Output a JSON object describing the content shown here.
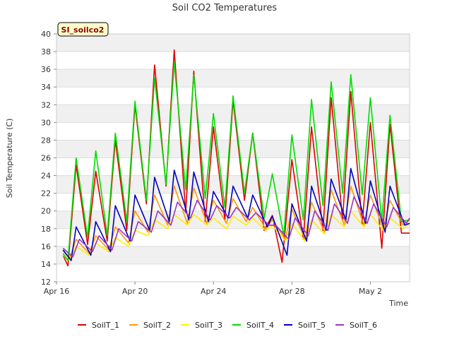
{
  "chart_data": {
    "type": "line",
    "title": "Soil CO2 Temperatures",
    "badge": "SI_soilco2",
    "xlabel": "Time",
    "ylabel": "Soil Temperature (C)",
    "ylim": [
      12,
      40
    ],
    "yticks": [
      12,
      14,
      16,
      18,
      20,
      22,
      24,
      26,
      28,
      30,
      32,
      34,
      36,
      38,
      40
    ],
    "xlim": [
      "2021-04-16",
      "2021-05-04"
    ],
    "xticks": [
      {
        "date": "2021-04-16",
        "label": "Apr 16"
      },
      {
        "date": "2021-04-20",
        "label": "Apr 20"
      },
      {
        "date": "2021-04-24",
        "label": "Apr 24"
      },
      {
        "date": "2021-04-28",
        "label": "Apr 28"
      },
      {
        "date": "2021-05-02",
        "label": "May 2"
      }
    ],
    "grid": "horizontal bands",
    "legend_position": "bottom",
    "colors": {
      "SoilT_1": "#dd0000",
      "SoilT_2": "#ff9900",
      "SoilT_3": "#ffee00",
      "SoilT_4": "#00dd00",
      "SoilT_5": "#0000bb",
      "SoilT_6": "#9933cc"
    },
    "series": [
      {
        "name": "SoilT_1",
        "x": [
          "2021-04-16T08:00",
          "2021-04-16T14:00",
          "2021-04-17T00:00",
          "2021-04-17T14:00",
          "2021-04-18T00:00",
          "2021-04-18T14:00",
          "2021-04-19T00:00",
          "2021-04-19T14:00",
          "2021-04-20T00:00",
          "2021-04-20T14:00",
          "2021-04-21T00:00",
          "2021-04-21T14:00",
          "2021-04-22T00:00",
          "2021-04-22T14:00",
          "2021-04-23T00:00",
          "2021-04-23T14:00",
          "2021-04-24T00:00",
          "2021-04-24T14:00",
          "2021-04-25T00:00",
          "2021-04-25T14:00",
          "2021-04-26T00:00",
          "2021-04-26T14:00",
          "2021-04-27T00:00",
          "2021-04-27T12:00",
          "2021-04-28T00:00",
          "2021-04-28T14:00",
          "2021-04-29T00:00",
          "2021-04-29T14:00",
          "2021-04-30T00:00",
          "2021-04-30T14:00",
          "2021-05-01T00:00",
          "2021-05-01T14:00",
          "2021-05-02T00:00",
          "2021-05-02T14:00",
          "2021-05-03T00:00",
          "2021-05-03T14:00",
          "2021-05-04T00:00"
        ],
        "values": [
          15.0,
          13.8,
          25.2,
          16.2,
          24.5,
          16.6,
          28.0,
          17.8,
          32.0,
          20.8,
          36.5,
          22.8,
          38.2,
          19.8,
          35.8,
          18.8,
          29.5,
          19.0,
          32.5,
          21.2,
          28.8,
          17.8,
          19.5,
          14.2,
          25.8,
          16.8,
          29.5,
          17.8,
          32.8,
          19.0,
          33.5,
          18.5,
          30.0,
          15.8,
          29.8,
          17.5,
          17.5
        ]
      },
      {
        "name": "SoilT_2",
        "x": [
          "2021-04-16T08:00",
          "2021-04-16T16:00",
          "2021-04-17T00:00",
          "2021-04-17T16:00",
          "2021-04-18T00:00",
          "2021-04-18T16:00",
          "2021-04-19T00:00",
          "2021-04-19T16:00",
          "2021-04-20T00:00",
          "2021-04-20T16:00",
          "2021-04-21T00:00",
          "2021-04-21T16:00",
          "2021-04-22T00:00",
          "2021-04-22T16:00",
          "2021-04-23T00:00",
          "2021-04-23T16:00",
          "2021-04-24T00:00",
          "2021-04-24T16:00",
          "2021-04-25T00:00",
          "2021-04-25T16:00",
          "2021-04-26T00:00",
          "2021-04-26T16:00",
          "2021-04-27T00:00",
          "2021-04-27T16:00",
          "2021-04-28T00:00",
          "2021-04-28T16:00",
          "2021-04-29T00:00",
          "2021-04-29T16:00",
          "2021-04-30T00:00",
          "2021-04-30T16:00",
          "2021-05-01T00:00",
          "2021-05-01T16:00",
          "2021-05-02T00:00",
          "2021-05-02T16:00",
          "2021-05-03T00:00",
          "2021-05-03T16:00",
          "2021-05-04T00:00"
        ],
        "values": [
          15.5,
          14.6,
          16.8,
          15.2,
          17.2,
          15.6,
          18.2,
          16.4,
          20.0,
          17.6,
          21.8,
          18.4,
          22.8,
          18.6,
          22.6,
          18.6,
          21.2,
          18.6,
          21.4,
          18.8,
          20.4,
          18.0,
          19.0,
          16.8,
          20.2,
          16.8,
          21.0,
          17.6,
          22.4,
          18.4,
          22.8,
          18.4,
          21.8,
          18.0,
          21.2,
          18.4,
          19.0
        ]
      },
      {
        "name": "SoilT_3",
        "x": [
          "2021-04-16T08:00",
          "2021-04-16T16:00",
          "2021-04-17T00:00",
          "2021-04-17T16:00",
          "2021-04-18T00:00",
          "2021-04-18T16:00",
          "2021-04-19T00:00",
          "2021-04-19T16:00",
          "2021-04-20T00:00",
          "2021-04-20T16:00",
          "2021-04-21T00:00",
          "2021-04-21T16:00",
          "2021-04-22T00:00",
          "2021-04-22T16:00",
          "2021-04-23T00:00",
          "2021-04-23T16:00",
          "2021-04-24T00:00",
          "2021-04-24T16:00",
          "2021-04-25T00:00",
          "2021-04-25T16:00",
          "2021-04-26T00:00",
          "2021-04-26T16:00",
          "2021-04-27T00:00",
          "2021-04-27T16:00",
          "2021-04-28T00:00",
          "2021-04-28T16:00",
          "2021-04-29T00:00",
          "2021-04-29T16:00",
          "2021-04-30T00:00",
          "2021-04-30T16:00",
          "2021-05-01T00:00",
          "2021-05-01T16:00",
          "2021-05-02T00:00",
          "2021-05-02T16:00",
          "2021-05-03T00:00",
          "2021-05-03T16:00",
          "2021-05-04T00:00"
        ],
        "values": [
          15.0,
          14.4,
          16.0,
          15.0,
          16.4,
          15.4,
          17.0,
          16.0,
          17.8,
          17.2,
          19.0,
          18.0,
          19.6,
          18.4,
          19.6,
          18.4,
          19.2,
          18.0,
          19.4,
          18.4,
          19.2,
          17.8,
          18.4,
          16.6,
          18.6,
          16.6,
          19.0,
          17.4,
          19.6,
          18.2,
          20.0,
          18.2,
          19.6,
          17.8,
          19.2,
          18.0,
          18.6
        ]
      },
      {
        "name": "SoilT_4",
        "x": [
          "2021-04-16T08:00",
          "2021-04-16T14:00",
          "2021-04-17T00:00",
          "2021-04-17T14:00",
          "2021-04-18T00:00",
          "2021-04-18T14:00",
          "2021-04-19T00:00",
          "2021-04-19T14:00",
          "2021-04-20T00:00",
          "2021-04-20T14:00",
          "2021-04-21T00:00",
          "2021-04-21T14:00",
          "2021-04-22T00:00",
          "2021-04-22T14:00",
          "2021-04-23T00:00",
          "2021-04-23T14:00",
          "2021-04-24T00:00",
          "2021-04-24T14:00",
          "2021-04-25T00:00",
          "2021-04-25T14:00",
          "2021-04-26T00:00",
          "2021-04-26T14:00",
          "2021-04-27T00:00",
          "2021-04-27T14:00",
          "2021-04-28T00:00",
          "2021-04-28T14:00",
          "2021-04-29T00:00",
          "2021-04-29T14:00",
          "2021-04-30T00:00",
          "2021-04-30T14:00",
          "2021-05-01T00:00",
          "2021-05-01T14:00",
          "2021-05-02T00:00",
          "2021-05-02T14:00",
          "2021-05-03T00:00",
          "2021-05-03T14:00",
          "2021-05-04T00:00"
        ],
        "values": [
          15.2,
          14.4,
          26.0,
          17.0,
          26.8,
          17.2,
          28.8,
          18.8,
          32.4,
          21.2,
          35.0,
          23.0,
          36.8,
          22.4,
          35.4,
          21.4,
          31.0,
          20.4,
          33.0,
          22.0,
          28.8,
          19.2,
          24.2,
          17.2,
          28.6,
          19.0,
          32.6,
          20.6,
          34.6,
          22.0,
          35.4,
          21.8,
          32.8,
          18.8,
          30.8,
          18.8,
          19.0
        ]
      },
      {
        "name": "SoilT_5",
        "x": [
          "2021-04-16T08:00",
          "2021-04-16T18:00",
          "2021-04-17T00:00",
          "2021-04-17T18:00",
          "2021-04-18T00:00",
          "2021-04-18T18:00",
          "2021-04-19T00:00",
          "2021-04-19T18:00",
          "2021-04-20T00:00",
          "2021-04-20T18:00",
          "2021-04-21T00:00",
          "2021-04-21T18:00",
          "2021-04-22T00:00",
          "2021-04-22T18:00",
          "2021-04-23T00:00",
          "2021-04-23T18:00",
          "2021-04-24T00:00",
          "2021-04-24T18:00",
          "2021-04-25T00:00",
          "2021-04-25T18:00",
          "2021-04-26T00:00",
          "2021-04-26T18:00",
          "2021-04-27T00:00",
          "2021-04-27T18:00",
          "2021-04-28T00:00",
          "2021-04-28T18:00",
          "2021-04-29T00:00",
          "2021-04-29T18:00",
          "2021-04-30T00:00",
          "2021-04-30T18:00",
          "2021-05-01T00:00",
          "2021-05-01T18:00",
          "2021-05-02T00:00",
          "2021-05-02T18:00",
          "2021-05-03T00:00",
          "2021-05-03T18:00",
          "2021-05-04T00:00"
        ],
        "values": [
          15.6,
          14.4,
          18.2,
          15.0,
          18.8,
          15.4,
          20.6,
          16.6,
          21.8,
          17.8,
          23.8,
          18.8,
          24.6,
          19.0,
          24.4,
          18.8,
          22.2,
          19.2,
          22.8,
          19.2,
          21.8,
          18.2,
          19.4,
          15.0,
          20.8,
          16.6,
          22.8,
          17.8,
          23.6,
          19.0,
          24.8,
          18.6,
          23.4,
          17.6,
          22.8,
          18.4,
          18.6
        ]
      },
      {
        "name": "SoilT_6",
        "x": [
          "2021-04-16T08:00",
          "2021-04-16T20:00",
          "2021-04-17T04:00",
          "2021-04-17T20:00",
          "2021-04-18T04:00",
          "2021-04-18T20:00",
          "2021-04-19T04:00",
          "2021-04-19T20:00",
          "2021-04-20T04:00",
          "2021-04-20T20:00",
          "2021-04-21T04:00",
          "2021-04-21T20:00",
          "2021-04-22T04:00",
          "2021-04-22T20:00",
          "2021-04-23T04:00",
          "2021-04-23T20:00",
          "2021-04-24T04:00",
          "2021-04-24T20:00",
          "2021-04-25T04:00",
          "2021-04-25T20:00",
          "2021-04-26T04:00",
          "2021-04-26T20:00",
          "2021-04-27T04:00",
          "2021-04-27T20:00",
          "2021-04-28T04:00",
          "2021-04-28T20:00",
          "2021-04-29T04:00",
          "2021-04-29T20:00",
          "2021-04-30T04:00",
          "2021-04-30T20:00",
          "2021-05-01T04:00",
          "2021-05-01T20:00",
          "2021-05-02T04:00",
          "2021-05-02T20:00",
          "2021-05-03T04:00",
          "2021-05-03T20:00",
          "2021-05-04T00:00"
        ],
        "values": [
          15.8,
          14.8,
          16.8,
          15.4,
          17.2,
          15.6,
          18.0,
          16.6,
          18.8,
          17.6,
          20.0,
          18.4,
          21.0,
          19.2,
          21.2,
          19.0,
          20.6,
          19.2,
          20.4,
          19.0,
          19.8,
          18.4,
          18.4,
          16.8,
          19.2,
          17.2,
          20.0,
          17.8,
          20.8,
          18.6,
          21.6,
          18.6,
          20.8,
          18.2,
          20.4,
          18.6,
          19.2
        ]
      }
    ]
  }
}
